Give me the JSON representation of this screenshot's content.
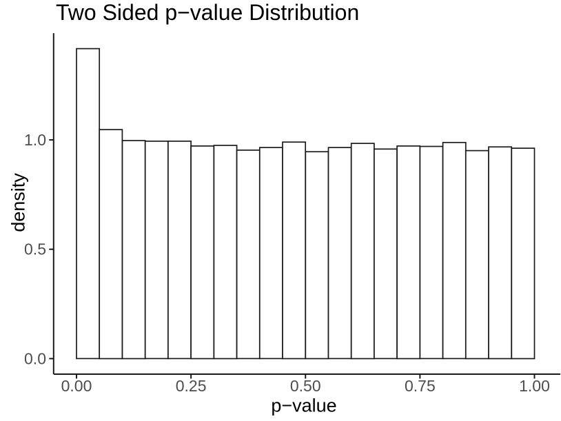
{
  "chart_data": {
    "type": "bar",
    "subtype": "histogram",
    "title": "Two Sided p−value Distribution",
    "xlabel": "p−value",
    "ylabel": "density",
    "bin_start": 0,
    "bin_width": 0.05,
    "values": [
      1.417,
      1.047,
      0.997,
      0.994,
      0.994,
      0.972,
      0.975,
      0.953,
      0.965,
      0.99,
      0.946,
      0.965,
      0.984,
      0.958,
      0.972,
      0.97,
      0.988,
      0.951,
      0.968,
      0.962
    ],
    "x_ticks": {
      "values": [
        0,
        0.25,
        0.5,
        0.75,
        1.0
      ],
      "labels": [
        "0.00",
        "0.25",
        "0.50",
        "0.75",
        "1.00"
      ]
    },
    "y_ticks": {
      "values": [
        0,
        0.5,
        1.0
      ],
      "labels": [
        "0.0",
        "0.5",
        "1.0"
      ]
    },
    "xlim": [
      -0.05,
      1.05
    ],
    "ylim": [
      -0.071,
      1.488
    ],
    "grid": false,
    "legend": "none",
    "styles": {
      "background": "#ffffff",
      "bar_fill": "#ffffff",
      "bar_stroke": "#1a1a1a",
      "axis_line": "#1a1a1a",
      "tick_label_color": "#4d4d4d",
      "title_color": "#000000",
      "axis_title_color": "#000000"
    }
  }
}
